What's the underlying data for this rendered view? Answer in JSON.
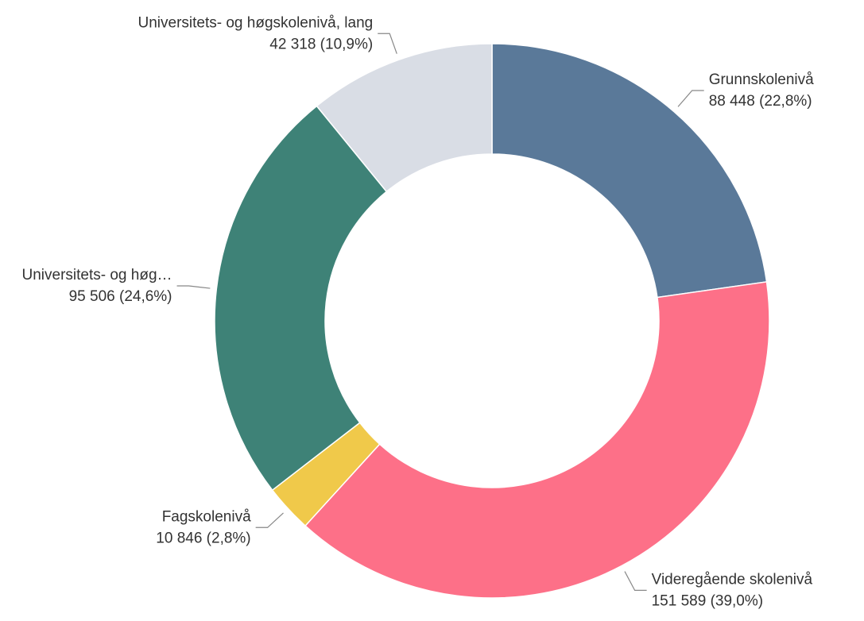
{
  "chart_data": {
    "type": "donut",
    "categories": [
      "Grunnskolenivå",
      "Videregående skolenivå",
      "Fagskolenivå",
      "Universitets- og høg…",
      "Universitets- og høgskolenivå, lang"
    ],
    "values": [
      88448,
      151589,
      10846,
      95506,
      42318
    ],
    "value_labels": [
      "88 448 (22,8%)",
      "151 589 (39,0%)",
      "10 846 (2,8%)",
      "95 506 (24,6%)",
      "42 318 (10,9%)"
    ],
    "colors": [
      "#5a7999",
      "#fd7088",
      "#f0c94a",
      "#3e8277",
      "#d9dde5"
    ]
  }
}
